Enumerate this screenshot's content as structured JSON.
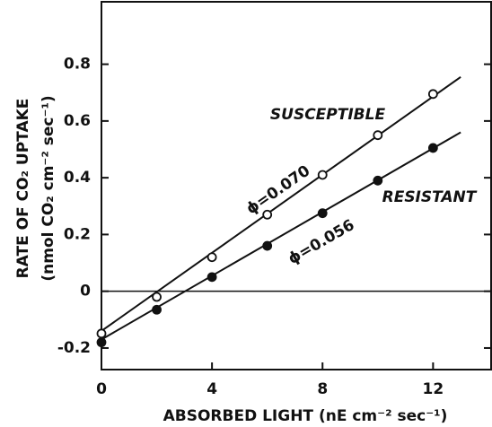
{
  "chart_data": {
    "type": "scatter",
    "x_label": "ABSORBED LIGHT (nE cm⁻² sec⁻¹)",
    "y_label": [
      "RATE OF CO₂ UPTAKE",
      "(nmol CO₂ cm⁻² sec⁻¹)"
    ],
    "xlim": [
      0,
      14.1
    ],
    "ylim": [
      -0.276,
      1.02
    ],
    "xticks": [
      0,
      4,
      8,
      12
    ],
    "yticks": [
      -0.2,
      0,
      0.2,
      0.4,
      0.6,
      0.8
    ],
    "series": [
      {
        "name": "SUSCEPTIBLE",
        "marker": "open",
        "color": "#111",
        "x": [
          0,
          2,
          4,
          6,
          8,
          10,
          12
        ],
        "values": [
          -0.149,
          -0.02,
          0.12,
          0.27,
          0.41,
          0.55,
          0.695
        ],
        "fit": {
          "x": [
            0,
            13
          ],
          "y": [
            -0.14,
            0.755
          ]
        },
        "annotation": "ϕ=0.070"
      },
      {
        "name": "RESISTANT",
        "marker": "filled",
        "color": "#111",
        "x": [
          0,
          2,
          4,
          6,
          8,
          10,
          12
        ],
        "values": [
          -0.18,
          -0.065,
          0.05,
          0.16,
          0.275,
          0.39,
          0.505
        ],
        "fit": {
          "x": [
            0,
            13
          ],
          "y": [
            -0.17,
            0.56
          ]
        },
        "annotation": "ϕ=0.056"
      }
    ]
  }
}
